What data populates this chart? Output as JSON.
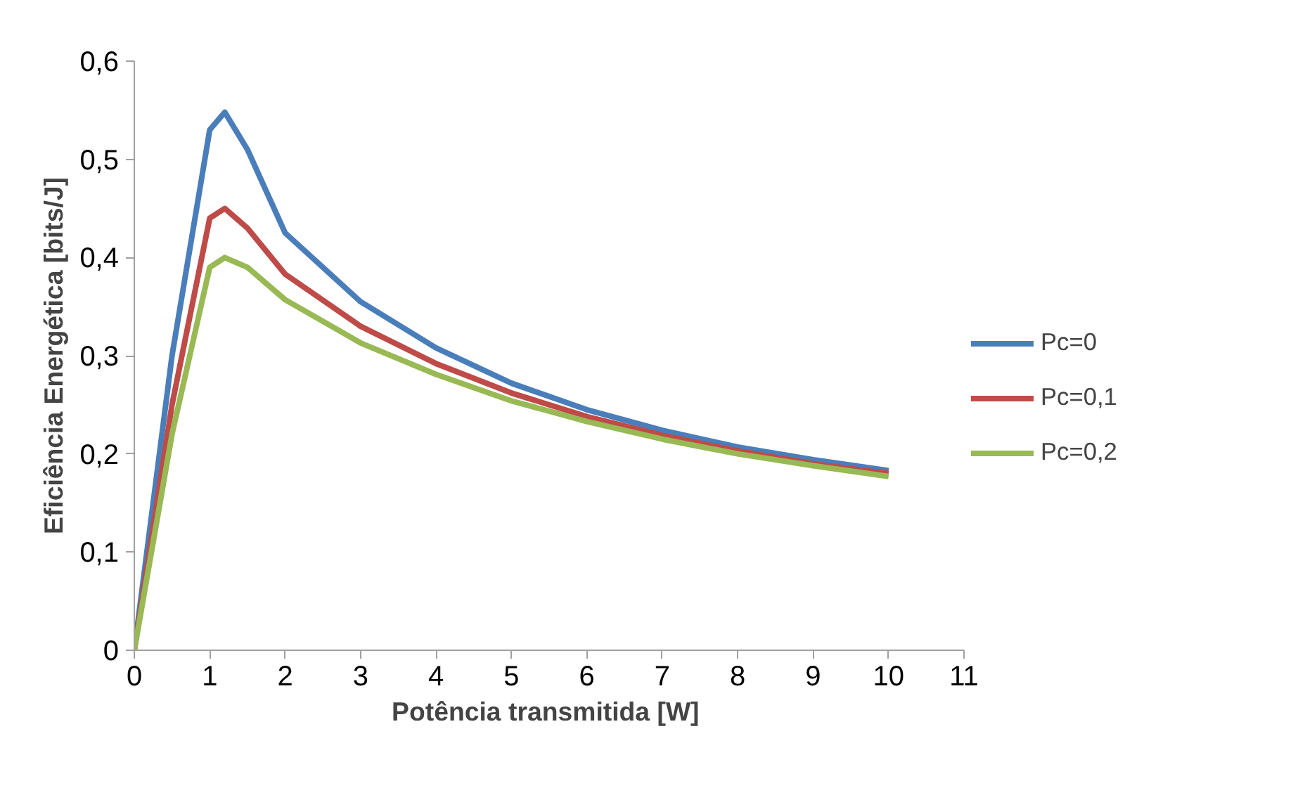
{
  "chart_data": {
    "type": "line",
    "xlabel": "Potência transmitida  [W]",
    "ylabel": "Eficiência Energética [bits/J]",
    "x": [
      0,
      0.5,
      1,
      1.2,
      1.5,
      2,
      3,
      4,
      5,
      6,
      7,
      8,
      9,
      10
    ],
    "series": [
      {
        "name": "Pc=0",
        "color": "#4a7ebb",
        "values": [
          0,
          0.3,
          0.53,
          0.548,
          0.51,
          0.425,
          0.355,
          0.308,
          0.272,
          0.245,
          0.224,
          0.207,
          0.194,
          0.183
        ]
      },
      {
        "name": "Pc=0,1",
        "color": "#be4b48",
        "values": [
          0,
          0.25,
          0.44,
          0.45,
          0.43,
          0.383,
          0.33,
          0.292,
          0.262,
          0.238,
          0.219,
          0.203,
          0.19,
          0.18
        ]
      },
      {
        "name": "Pc=0,2",
        "color": "#98b954",
        "values": [
          0,
          0.22,
          0.39,
          0.4,
          0.39,
          0.357,
          0.313,
          0.281,
          0.254,
          0.233,
          0.215,
          0.2,
          0.188,
          0.177
        ]
      }
    ],
    "xlim": [
      0,
      11
    ],
    "xticks": [
      0,
      1,
      2,
      3,
      4,
      5,
      6,
      7,
      8,
      9,
      10,
      11
    ],
    "ylim": [
      0,
      0.6
    ],
    "yticks": [
      0,
      {
        "value": 0.1,
        "label": "0,1"
      },
      {
        "value": 0.2,
        "label": "0,2"
      },
      {
        "value": 0.3,
        "label": "0,3"
      },
      {
        "value": 0.4,
        "label": "0,4"
      },
      {
        "value": 0.5,
        "label": "0,5"
      },
      {
        "value": 0.6,
        "label": "0,6"
      }
    ],
    "grid": false,
    "legend": "right",
    "marker": "none",
    "line_style": "solid"
  }
}
